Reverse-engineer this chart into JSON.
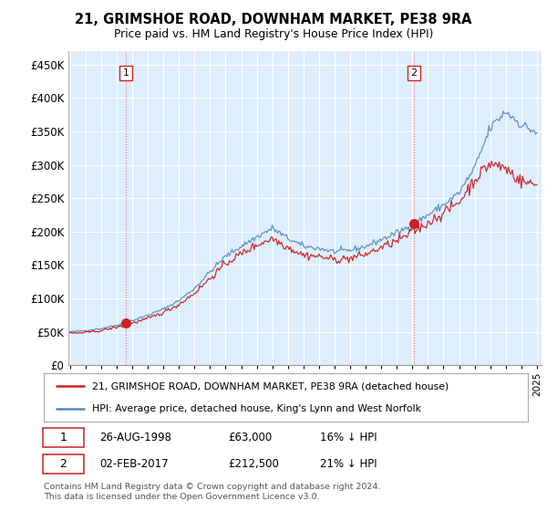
{
  "title": "21, GRIMSHOE ROAD, DOWNHAM MARKET, PE38 9RA",
  "subtitle": "Price paid vs. HM Land Registry's House Price Index (HPI)",
  "hpi_color": "#5588bb",
  "price_color": "#cc2222",
  "marker_color": "#cc2222",
  "background_color": "#ffffff",
  "chart_bg_color": "#ddeeff",
  "grid_color": "#ffffff",
  "vgrid_color": "#ccddee",
  "ylim": [
    0,
    470000
  ],
  "yticks": [
    0,
    50000,
    100000,
    150000,
    200000,
    250000,
    300000,
    350000,
    400000,
    450000
  ],
  "ytick_labels": [
    "£0",
    "£50K",
    "£100K",
    "£150K",
    "£200K",
    "£250K",
    "£300K",
    "£350K",
    "£400K",
    "£450K"
  ],
  "transactions": [
    {
      "date": "1998-08-26",
      "price": 63000,
      "label": "1"
    },
    {
      "date": "2017-02-02",
      "price": 212500,
      "label": "2"
    }
  ],
  "legend_line1": "21, GRIMSHOE ROAD, DOWNHAM MARKET, PE38 9RA (detached house)",
  "legend_line2": "HPI: Average price, detached house, King's Lynn and West Norfolk",
  "footer": "Contains HM Land Registry data © Crown copyright and database right 2024.\nThis data is licensed under the Open Government Licence v3.0."
}
